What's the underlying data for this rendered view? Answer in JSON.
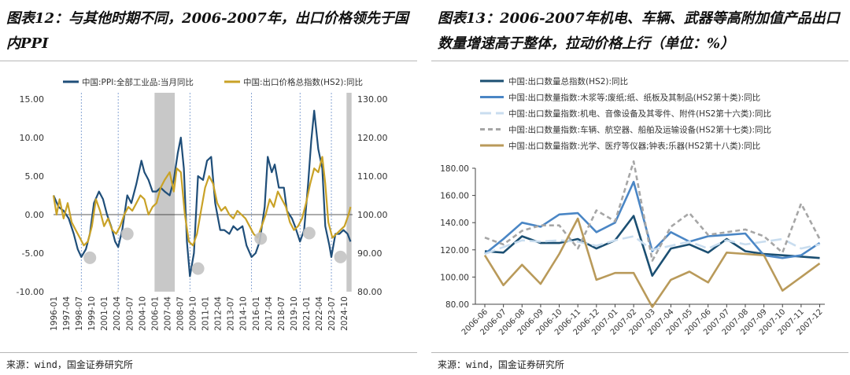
{
  "left": {
    "title": "图表12：与其他时期不同，2006-2007年，出口价格领先于国内PPI",
    "source": "来源：wind，国金证券研究所"
  },
  "right": {
    "title": "图表13：2006-2007年机电、车辆、武器等高附加值产品出口数量增速高于整体，拉动价格上行（单位：%）",
    "source": "来源：wind，国金证券研究所"
  },
  "chart_data": [
    {
      "type": "line",
      "legend_placement": "top",
      "x_ticks": [
        "1996-01",
        "1997-04",
        "1998-07",
        "1999-10",
        "2001-01",
        "2002-04",
        "2003-07",
        "2004-10",
        "2006-01",
        "2007-04",
        "2008-07",
        "2009-10",
        "2011-01",
        "2012-04",
        "2013-07",
        "2014-10",
        "2016-01",
        "2017-04",
        "2018-07",
        "2019-10",
        "2021-01",
        "2022-04",
        "2023-07",
        "2024-10"
      ],
      "y_left": {
        "ticks": [
          "15.00",
          "10.00",
          "5.00",
          "0.00",
          "-5.00",
          "-10.00"
        ],
        "lim": [
          -10,
          15
        ]
      },
      "y_right": {
        "ticks": [
          "130.00",
          "120.00",
          "110.00",
          "100.00",
          "90.00",
          "80.00"
        ],
        "lim": [
          80,
          130
        ]
      },
      "shaded_periods": [
        [
          "2006-01",
          "2007-12"
        ],
        [
          "2025-01",
          "2025-06"
        ]
      ],
      "series": [
        {
          "name": "中国:PPI:全部工业品:当月同比",
          "axis": "left",
          "color": "#1f4e79",
          "points": [
            [
              1996.0,
              2.5
            ],
            [
              1996.5,
              1.0
            ],
            [
              1997.0,
              0.5
            ],
            [
              1997.5,
              -0.5
            ],
            [
              1998.0,
              -2.5
            ],
            [
              1998.4,
              -4.5
            ],
            [
              1998.75,
              -5.5
            ],
            [
              1999.2,
              -4.5
            ],
            [
              1999.6,
              -2.5
            ],
            [
              2000.0,
              1.5
            ],
            [
              2000.5,
              3.0
            ],
            [
              2000.9,
              2.0
            ],
            [
              2001.3,
              0.0
            ],
            [
              2001.7,
              -1.5
            ],
            [
              2002.1,
              -3.5
            ],
            [
              2002.4,
              -4.2
            ],
            [
              2002.8,
              -2.0
            ],
            [
              2003.3,
              2.5
            ],
            [
              2003.7,
              1.5
            ],
            [
              2004.2,
              4.0
            ],
            [
              2004.7,
              7.0
            ],
            [
              2005.0,
              5.5
            ],
            [
              2005.4,
              4.5
            ],
            [
              2005.8,
              3.0
            ],
            [
              2006.2,
              3.0
            ],
            [
              2006.6,
              3.5
            ],
            [
              2007.0,
              3.0
            ],
            [
              2007.5,
              2.5
            ],
            [
              2007.9,
              4.5
            ],
            [
              2008.3,
              8.0
            ],
            [
              2008.6,
              10.0
            ],
            [
              2008.9,
              6.0
            ],
            [
              2009.2,
              -3.5
            ],
            [
              2009.5,
              -8.0
            ],
            [
              2009.9,
              -5.0
            ],
            [
              2010.3,
              5.0
            ],
            [
              2010.8,
              4.5
            ],
            [
              2011.2,
              7.0
            ],
            [
              2011.6,
              7.5
            ],
            [
              2012.0,
              1.5
            ],
            [
              2012.5,
              -2.0
            ],
            [
              2012.9,
              -2.0
            ],
            [
              2013.4,
              -2.5
            ],
            [
              2013.8,
              -1.5
            ],
            [
              2014.2,
              -2.0
            ],
            [
              2014.7,
              -1.5
            ],
            [
              2015.1,
              -4.0
            ],
            [
              2015.6,
              -5.5
            ],
            [
              2016.0,
              -5.0
            ],
            [
              2016.4,
              -3.5
            ],
            [
              2016.9,
              1.0
            ],
            [
              2017.2,
              7.5
            ],
            [
              2017.6,
              5.5
            ],
            [
              2017.9,
              6.5
            ],
            [
              2018.3,
              3.5
            ],
            [
              2018.8,
              3.5
            ],
            [
              2019.1,
              0.5
            ],
            [
              2019.6,
              -0.5
            ],
            [
              2019.9,
              -1.5
            ],
            [
              2020.4,
              -3.5
            ],
            [
              2020.8,
              -2.0
            ],
            [
              2021.2,
              4.0
            ],
            [
              2021.5,
              9.5
            ],
            [
              2021.8,
              13.5
            ],
            [
              2022.2,
              8.5
            ],
            [
              2022.6,
              6.0
            ],
            [
              2022.9,
              -1.5
            ],
            [
              2023.3,
              -4.0
            ],
            [
              2023.5,
              -5.5
            ],
            [
              2023.9,
              -2.5
            ],
            [
              2024.3,
              -2.5
            ],
            [
              2024.7,
              -2.0
            ],
            [
              2025.1,
              -2.5
            ],
            [
              2025.4,
              -3.5
            ]
          ]
        },
        {
          "name": "中国:出口价格总指数(HS2):同比",
          "axis": "right",
          "color": "#c9a227",
          "points": [
            [
              1996.0,
              105.0
            ],
            [
              1996.3,
              100.0
            ],
            [
              1996.6,
              104.0
            ],
            [
              1997.0,
              99.0
            ],
            [
              1997.4,
              103.0
            ],
            [
              1997.8,
              98.0
            ],
            [
              1998.2,
              96.0
            ],
            [
              1998.6,
              94.0
            ],
            [
              1999.0,
              92.0
            ],
            [
              1999.4,
              93.0
            ],
            [
              1999.8,
              97.0
            ],
            [
              2000.2,
              104.0
            ],
            [
              2000.6,
              101.0
            ],
            [
              2001.0,
              97.0
            ],
            [
              2001.4,
              99.0
            ],
            [
              2001.8,
              96.0
            ],
            [
              2002.2,
              95.0
            ],
            [
              2002.6,
              97.0
            ],
            [
              2003.0,
              100.0
            ],
            [
              2003.4,
              102.0
            ],
            [
              2003.8,
              101.0
            ],
            [
              2004.2,
              103.0
            ],
            [
              2004.6,
              105.0
            ],
            [
              2005.0,
              104.0
            ],
            [
              2005.4,
              100.0
            ],
            [
              2005.8,
              102.0
            ],
            [
              2006.2,
              103.0
            ],
            [
              2006.6,
              107.0
            ],
            [
              2007.0,
              109.0
            ],
            [
              2007.5,
              111.0
            ],
            [
              2007.9,
              106.0
            ],
            [
              2008.2,
              112.0
            ],
            [
              2008.6,
              111.0
            ],
            [
              2009.0,
              100.0
            ],
            [
              2009.4,
              93.0
            ],
            [
              2009.8,
              92.0
            ],
            [
              2010.2,
              95.0
            ],
            [
              2010.6,
              101.0
            ],
            [
              2011.0,
              107.0
            ],
            [
              2011.4,
              110.0
            ],
            [
              2011.8,
              108.0
            ],
            [
              2012.2,
              103.0
            ],
            [
              2012.6,
              101.0
            ],
            [
              2013.0,
              102.0
            ],
            [
              2013.4,
              100.0
            ],
            [
              2013.8,
              99.0
            ],
            [
              2014.2,
              101.0
            ],
            [
              2014.6,
              100.0
            ],
            [
              2015.0,
              99.0
            ],
            [
              2015.4,
              97.0
            ],
            [
              2015.8,
              95.0
            ],
            [
              2016.2,
              94.0
            ],
            [
              2016.6,
              97.0
            ],
            [
              2017.0,
              100.0
            ],
            [
              2017.4,
              104.0
            ],
            [
              2017.8,
              102.0
            ],
            [
              2018.2,
              106.0
            ],
            [
              2018.6,
              104.0
            ],
            [
              2019.0,
              102.0
            ],
            [
              2019.4,
              98.0
            ],
            [
              2019.8,
              96.0
            ],
            [
              2020.2,
              97.0
            ],
            [
              2020.6,
              99.0
            ],
            [
              2021.0,
              103.0
            ],
            [
              2021.4,
              108.0
            ],
            [
              2021.8,
              112.0
            ],
            [
              2022.2,
              111.0
            ],
            [
              2022.6,
              115.0
            ],
            [
              2022.9,
              108.0
            ],
            [
              2023.2,
              98.0
            ],
            [
              2023.6,
              94.0
            ],
            [
              2024.0,
              95.0
            ],
            [
              2024.4,
              96.0
            ],
            [
              2024.8,
              97.0
            ],
            [
              2025.2,
              100.0
            ],
            [
              2025.4,
              102.0
            ]
          ]
        }
      ]
    },
    {
      "type": "line",
      "legend_placement": "top",
      "categories": [
        "2006-06",
        "2006-07",
        "2006-08",
        "2006-09",
        "2006-10",
        "2006-11",
        "2006-12",
        "2007-01",
        "2007-02",
        "2007-03",
        "2007-04",
        "2007-05",
        "2007-06",
        "2007-07",
        "2007-08",
        "2007-09",
        "2007-10",
        "2007-11",
        "2007-12"
      ],
      "y_ticks": [
        "180.00",
        "160.00",
        "140.00",
        "120.00",
        "100.00",
        "80.00"
      ],
      "ylim": [
        80,
        180
      ],
      "series": [
        {
          "name": "中国:出口数量总指数(HS2):同比",
          "color": "#1b4f72",
          "dash": "solid",
          "values": [
            119,
            118,
            130,
            125,
            125,
            128,
            121,
            127,
            145,
            101,
            121,
            124,
            118,
            128,
            119,
            117,
            116,
            115,
            114
          ]
        },
        {
          "name": "中国:出口数量指数:木浆等;废纸;纸、纸板及其制品(HS2第十类):同比",
          "color": "#4a86c5",
          "dash": "solid",
          "values": [
            117,
            128,
            140,
            137,
            146,
            147,
            133,
            140,
            170,
            119,
            133,
            126,
            130,
            131,
            132,
            116,
            114,
            116,
            125
          ]
        },
        {
          "name": "中国:出口数量指数:机电、音像设备及其零件、附件(HS2第十六类):同比",
          "color": "#c9ddef",
          "dash": "longdash",
          "values": [
            117,
            122,
            127,
            126,
            127,
            126,
            123,
            127,
            130,
            120,
            123,
            126,
            121,
            127,
            124,
            126,
            128,
            121,
            124
          ]
        },
        {
          "name": "中国:出口数量指数:车辆、航空器、船舶及运输设备(HS2第十七类):同比",
          "color": "#a6a6a6",
          "dash": "dash",
          "values": [
            129,
            124,
            134,
            138,
            138,
            121,
            149,
            141,
            185,
            112,
            137,
            147,
            131,
            133,
            135,
            130,
            118,
            154,
            128
          ]
        },
        {
          "name": "中国:出口数量指数:光学、医疗等仪器;钟表;乐器(HS2第十八类):同比",
          "color": "#b99a5a",
          "dash": "solid",
          "values": [
            116,
            94,
            109,
            95,
            117,
            143,
            98,
            103,
            103,
            78,
            98,
            104,
            96,
            118,
            117,
            116,
            90,
            100,
            110
          ]
        }
      ]
    }
  ]
}
